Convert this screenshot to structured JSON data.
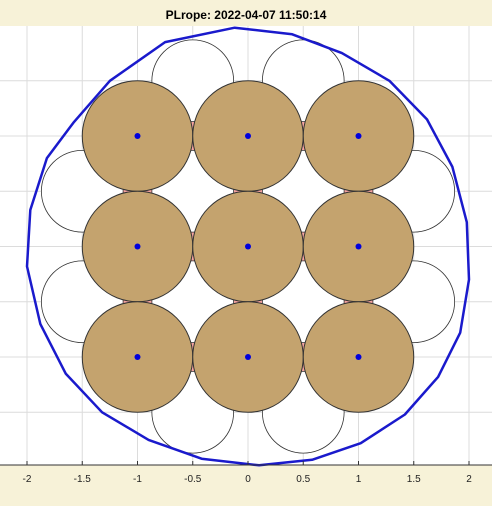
{
  "chart_data": {
    "type": "scatter",
    "title": "PLrope: 2022-04-07 11:50:14",
    "xlabel": "",
    "ylabel": "",
    "xlim": [
      -2.2,
      2.2
    ],
    "ylim": [
      -2.0,
      2.0
    ],
    "xticks": [
      -2,
      -1.5,
      -1,
      -0.5,
      0,
      0.5,
      1,
      1.5,
      2
    ],
    "xtick_labels": [
      "-2",
      "-1.5",
      "-1",
      "-0.5",
      "0",
      "0.5",
      "1",
      "1.5",
      "2"
    ],
    "grid": true,
    "wire_radius": 0.5,
    "wire_centers": {
      "x": [
        -1,
        0,
        1,
        -1,
        0,
        1,
        -1,
        0,
        1
      ],
      "y": [
        1,
        1,
        1,
        0,
        0,
        0,
        -1,
        -1,
        -1
      ]
    },
    "outer_boundary": {
      "x": [
        -0.12,
        0.4,
        0.85,
        1.28,
        1.62,
        1.85,
        1.98,
        2.0,
        1.92,
        1.72,
        1.42,
        1.02,
        0.58,
        0.1,
        -0.42,
        -0.9,
        -1.32,
        -1.65,
        -1.88,
        -2.0,
        -1.97,
        -1.82,
        -1.58,
        -1.25,
        -0.75
      ],
      "y": [
        1.98,
        1.92,
        1.75,
        1.5,
        1.15,
        0.72,
        0.22,
        -0.3,
        -0.78,
        -1.18,
        -1.52,
        -1.78,
        -1.93,
        -1.98,
        -1.92,
        -1.75,
        -1.5,
        -1.15,
        -0.7,
        -0.18,
        0.33,
        0.8,
        1.12,
        1.5,
        1.85
      ]
    },
    "colors": {
      "background": "#f7f2d8",
      "wire_fill": "#c4a36e",
      "wire_stroke": "#333333",
      "filler": "#f5a3a0",
      "center_marker": "#0000dd",
      "boundary": "#1a1acc",
      "grid": "#dcdcdc"
    }
  }
}
